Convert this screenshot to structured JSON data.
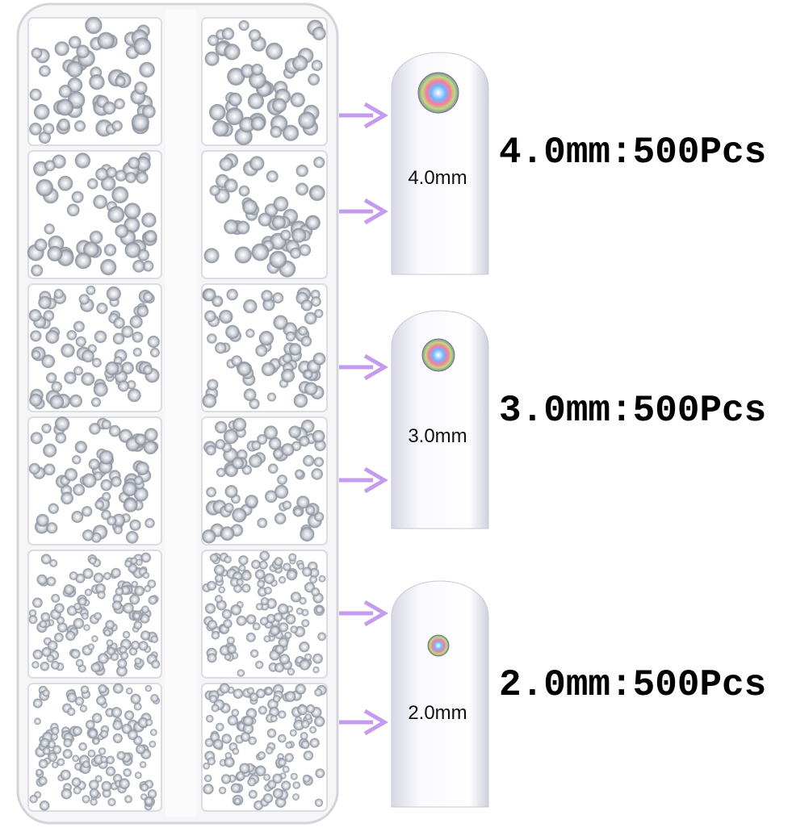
{
  "sizes": [
    {
      "nail_label": "4.0mm",
      "caption": "4.0mm:500Pcs"
    },
    {
      "nail_label": "3.0mm",
      "caption": "3.0mm:500Pcs"
    },
    {
      "nail_label": "2.0mm",
      "caption": "2.0mm:500Pcs"
    }
  ]
}
